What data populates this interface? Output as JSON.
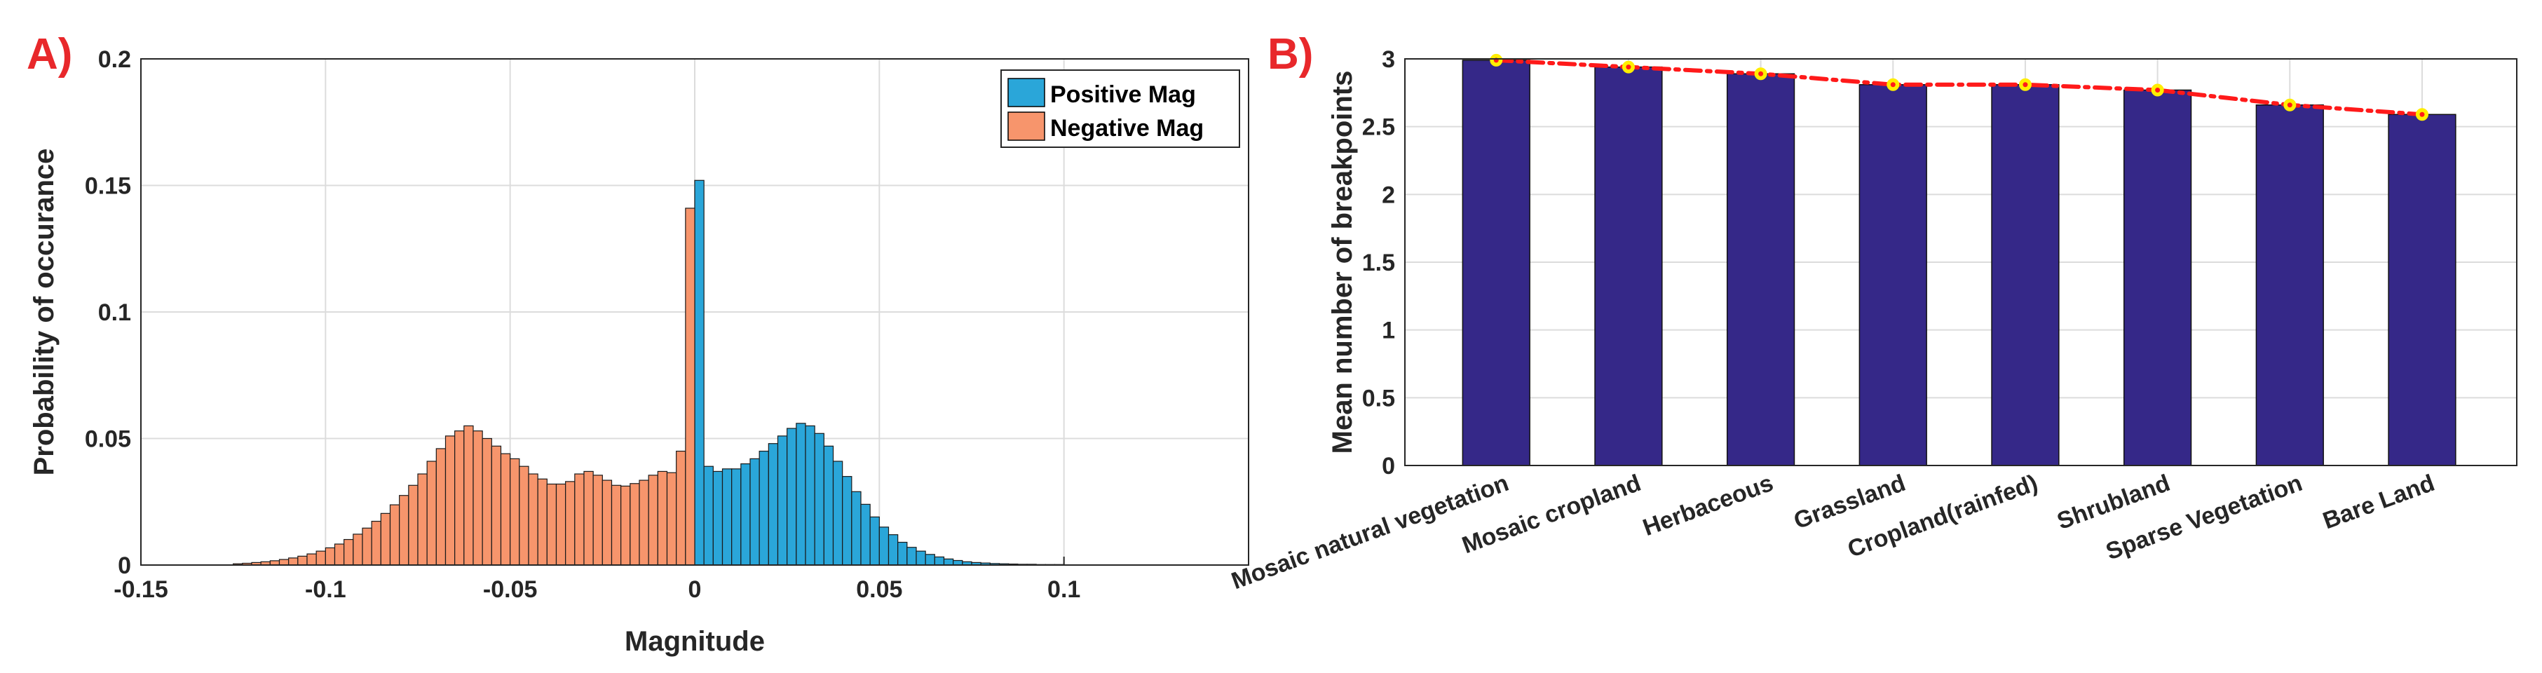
{
  "figure": {
    "colors": {
      "positive": "#2aa6d9",
      "negative": "#f7956c",
      "bar_b": "#352888",
      "trend": "#ff1a1a",
      "marker_fill": "#ffee00",
      "panel_label": "#e8282b"
    }
  },
  "chart_data": [
    {
      "panel": "A)",
      "type": "bar",
      "subtype": "histogram",
      "xlabel": "Magnitude",
      "ylabel": "Probability of occurance",
      "xlim": [
        -0.15,
        0.15
      ],
      "ylim": [
        0,
        0.2
      ],
      "xticks": [
        "-0.15",
        "-0.1",
        "-0.05",
        "0",
        "0.05",
        "0.1"
      ],
      "yticks": [
        "0",
        "0.05",
        "0.1",
        "0.15",
        "0.2"
      ],
      "grid": true,
      "legend": {
        "position": "top-right",
        "entries": [
          "Positive Mag",
          "Negative Mag"
        ]
      },
      "bin_width": 0.0025,
      "series": [
        {
          "name": "Positive Mag",
          "bin_start": 0,
          "values": [
            0.152,
            0.039,
            0.037,
            0.038,
            0.038,
            0.04,
            0.042,
            0.045,
            0.048,
            0.051,
            0.054,
            0.056,
            0.055,
            0.052,
            0.047,
            0.041,
            0.035,
            0.029,
            0.024,
            0.019,
            0.015,
            0.012,
            0.009,
            0.007,
            0.0055,
            0.0042,
            0.0032,
            0.0024,
            0.0018,
            0.0013,
            0.001,
            0.0008,
            0.0006,
            0.0005,
            0.0004,
            0.0003,
            0.0003,
            0.0002,
            0.0002,
            0.0002
          ]
        },
        {
          "name": "Negative Mag",
          "bin_start": -0.125,
          "values": [
            0.0005,
            0.0007,
            0.001,
            0.0013,
            0.0017,
            0.0022,
            0.0028,
            0.0035,
            0.0044,
            0.0055,
            0.0068,
            0.0083,
            0.0101,
            0.0122,
            0.0146,
            0.0173,
            0.0204,
            0.0238,
            0.0275,
            0.0315,
            0.036,
            0.041,
            0.046,
            0.051,
            0.053,
            0.055,
            0.053,
            0.05,
            0.047,
            0.044,
            0.042,
            0.039,
            0.036,
            0.034,
            0.032,
            0.032,
            0.033,
            0.036,
            0.037,
            0.0355,
            0.0335,
            0.0315,
            0.0312,
            0.0322,
            0.0335,
            0.0355,
            0.037,
            0.0365,
            0.045,
            0.141
          ]
        }
      ]
    },
    {
      "panel": "B)",
      "type": "bar",
      "xlabel": "",
      "ylabel": "Mean number of breakpoints",
      "ylim": [
        0,
        3
      ],
      "yticks": [
        "0",
        "0.5",
        "1",
        "1.5",
        "2",
        "2.5",
        "3"
      ],
      "grid": true,
      "categories": [
        "Mosaic natural vegetation",
        "Mosaic cropland",
        "Herbaceous",
        "Grassland",
        "Cropland(rainfed)",
        "Shrubland",
        "Sparse Vegetation",
        "Bare Land"
      ],
      "values": [
        2.99,
        2.94,
        2.89,
        2.81,
        2.81,
        2.77,
        2.66,
        2.59
      ],
      "trend_line": {
        "style": "dash-dot",
        "values": [
          2.99,
          2.94,
          2.89,
          2.81,
          2.81,
          2.77,
          2.66,
          2.59
        ]
      }
    }
  ]
}
